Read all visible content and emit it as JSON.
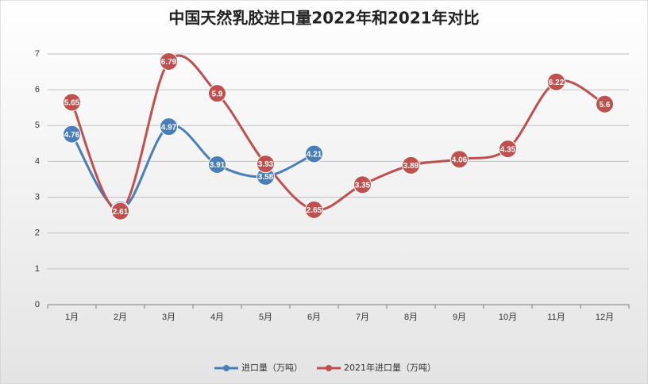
{
  "chart_data": {
    "type": "line",
    "title": "中国天然乳胶进口量2022年和2021年对比",
    "categories": [
      "1月",
      "2月",
      "3月",
      "4月",
      "5月",
      "6月",
      "7月",
      "8月",
      "9月",
      "10月",
      "11月",
      "12月"
    ],
    "series": [
      {
        "name": "进口量（万吨）",
        "color": "#4a7ebb",
        "values": [
          4.76,
          2.65,
          4.97,
          3.91,
          3.58,
          4.21,
          null,
          null,
          null,
          null,
          null,
          null
        ]
      },
      {
        "name": "2021年进口量（万吨）",
        "color": "#c0504d",
        "values": [
          5.65,
          2.61,
          6.79,
          5.9,
          3.93,
          2.65,
          3.35,
          3.89,
          4.06,
          4.35,
          6.22,
          5.6
        ]
      }
    ],
    "ylim": [
      0,
      7
    ],
    "yticks": [
      0,
      1,
      2,
      3,
      4,
      5,
      6,
      7
    ],
    "grid": true,
    "smooth": true,
    "legend": "bottom"
  }
}
